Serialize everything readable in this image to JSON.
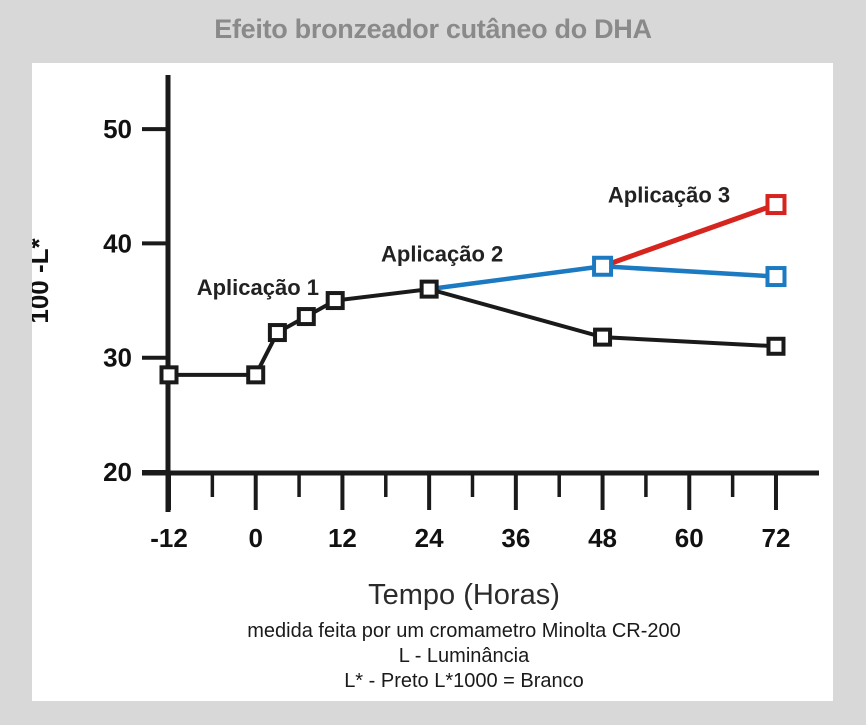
{
  "header": {
    "title": "Efeito bronzeador cutâneo do DHA"
  },
  "colors": {
    "background": "#d8d8d8",
    "panel": "#ffffff",
    "title_text": "#8a8a8a",
    "axis": "#1a1a1a",
    "tick_label": "#111111",
    "annotation_text": "#222222",
    "series_black": "#1a1a1a",
    "series_blue": "#1b7ac1",
    "series_red": "#d6251f"
  },
  "chart_data": {
    "type": "line",
    "title": "Efeito bronzeador cutâneo do DHA",
    "xlabel": "Tempo (Horas)",
    "ylabel": "100 -L*",
    "xlim": [
      -16.4,
      78
    ],
    "ylim": [
      14.5,
      54.8
    ],
    "x_ticks_major": [
      -12,
      0,
      12,
      24,
      36,
      48,
      60,
      72
    ],
    "x_ticks_minor": [
      -6,
      6,
      18,
      30,
      42,
      54,
      66
    ],
    "y_ticks": [
      20,
      30,
      40,
      50
    ],
    "grid": false,
    "legend_position": "inline-annotations",
    "marker_style": "open-square",
    "series": [
      {
        "name": "Aplicação 1",
        "color": "#1a1a1a",
        "line_width": 4,
        "x": [
          -12,
          0,
          3,
          7,
          11,
          24,
          48,
          72
        ],
        "y": [
          28.5,
          28.5,
          32.2,
          33.6,
          35,
          36,
          31.8,
          31
        ],
        "marker_at": [
          -12,
          0,
          3,
          7,
          11,
          24,
          48,
          72
        ],
        "marker_size": 15
      },
      {
        "name": "Aplicação 2",
        "color": "#1b7ac1",
        "line_width": 4.5,
        "x": [
          24,
          48,
          72
        ],
        "y": [
          36,
          38,
          37.1
        ],
        "marker_at": [
          48,
          72
        ],
        "marker_size": 17
      },
      {
        "name": "Aplicação 3",
        "color": "#d6251f",
        "line_width": 5,
        "x": [
          48,
          72
        ],
        "y": [
          38,
          43.4
        ],
        "marker_at": [
          72
        ],
        "marker_size": 17
      }
    ],
    "annotations": [
      {
        "label": "Aplicação 1",
        "x": 0.3,
        "y": 36.2
      },
      {
        "label": "Aplicação 2",
        "x": 25.8,
        "y": 39.1
      },
      {
        "label": "Aplicação 3",
        "x": 57.2,
        "y": 44.3
      }
    ],
    "captions": [
      "medida feita por um cromametro Minolta CR-200",
      "L - Luminância",
      "L* - Preto L*1000 = Branco"
    ]
  }
}
